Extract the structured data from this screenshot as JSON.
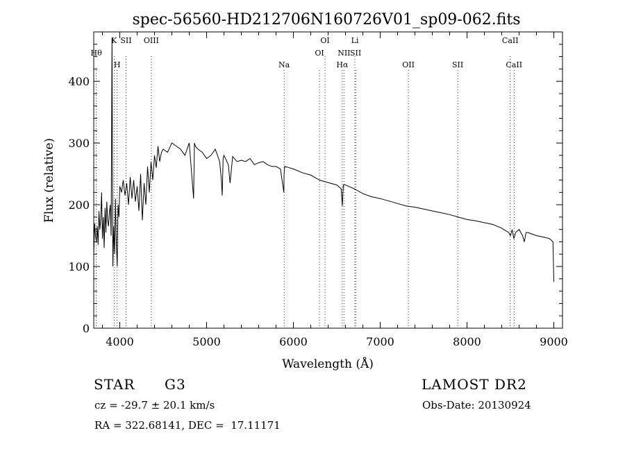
{
  "chart_data": {
    "type": "line",
    "title": "spec-56560-HD212706N160726V01_sp09-062.fits",
    "xlabel": "Wavelength (Å)",
    "ylabel": "Flux (relative)",
    "xlim": [
      3700,
      9100
    ],
    "ylim": [
      0,
      480
    ],
    "xticks": [
      4000,
      5000,
      6000,
      7000,
      8000,
      9000
    ],
    "yticks": [
      0,
      100,
      200,
      300,
      400
    ],
    "grid": false,
    "series": [
      {
        "x": [
          3700,
          3710,
          3720,
          3730,
          3740,
          3750,
          3760,
          3770,
          3780,
          3790,
          3800,
          3810,
          3820,
          3830,
          3840,
          3850,
          3860,
          3870,
          3880,
          3890,
          3900,
          3910,
          3920,
          3930,
          3940,
          3950,
          3960,
          3970,
          3980,
          3990,
          4000,
          4020,
          4040,
          4060,
          4080,
          4100,
          4120,
          4140,
          4160,
          4180,
          4200,
          4220,
          4240,
          4260,
          4280,
          4300,
          4320,
          4340,
          4360,
          4380,
          4400,
          4420,
          4440,
          4460,
          4480,
          4500,
          4550,
          4600,
          4650,
          4700,
          4750,
          4800,
          4850,
          4860,
          4870,
          4900,
          4950,
          5000,
          5050,
          5100,
          5150,
          5170,
          5180,
          5190,
          5200,
          5250,
          5270,
          5300,
          5350,
          5400,
          5450,
          5500,
          5550,
          5600,
          5650,
          5700,
          5750,
          5800,
          5850,
          5890,
          5893,
          5900,
          5950,
          6000,
          6100,
          6200,
          6300,
          6400,
          6500,
          6550,
          6563,
          6575,
          6600,
          6700,
          6800,
          6900,
          7000,
          7100,
          7200,
          7300,
          7400,
          7500,
          7600,
          7700,
          7800,
          7900,
          8000,
          8100,
          8200,
          8300,
          8400,
          8480,
          8500,
          8520,
          8540,
          8560,
          8600,
          8640,
          8660,
          8680,
          8700,
          8800,
          8900,
          8950,
          8990,
          9000
        ],
        "y": [
          120,
          170,
          150,
          140,
          165,
          135,
          190,
          160,
          175,
          220,
          145,
          180,
          130,
          195,
          155,
          205,
          175,
          165,
          188,
          200,
          150,
          470,
          100,
          165,
          120,
          210,
          140,
          100,
          200,
          180,
          230,
          220,
          240,
          215,
          235,
          200,
          245,
          210,
          240,
          205,
          230,
          190,
          250,
          175,
          235,
          200,
          262,
          220,
          270,
          240,
          280,
          260,
          295,
          270,
          285,
          290,
          285,
          300,
          295,
          290,
          280,
          300,
          210,
          300,
          295,
          290,
          285,
          275,
          280,
          290,
          270,
          240,
          215,
          275,
          280,
          265,
          235,
          278,
          270,
          272,
          270,
          275,
          265,
          268,
          270,
          265,
          262,
          262,
          258,
          220,
          250,
          262,
          260,
          258,
          252,
          248,
          240,
          236,
          232,
          226,
          198,
          232,
          232,
          226,
          218,
          213,
          210,
          206,
          202,
          198,
          196,
          193,
          190,
          187,
          184,
          180,
          176,
          174,
          171,
          168,
          162,
          155,
          150,
          160,
          145,
          155,
          160,
          150,
          140,
          155,
          155,
          150,
          147,
          145,
          140,
          75
        ]
      }
    ],
    "line_labels_top": [
      {
        "label": "Hθ",
        "wavelength": 3729
      },
      {
        "label": "K",
        "wavelength": 3934
      },
      {
        "label": "SII",
        "wavelength": 4072
      },
      {
        "label": "OIII",
        "wavelength": 4363
      },
      {
        "label": "OI",
        "wavelength": 6364
      },
      {
        "label": "Li",
        "wavelength": 6708
      },
      {
        "label": "CaII",
        "wavelength": 8498
      }
    ],
    "line_labels_bottom": [
      {
        "label": "H",
        "wavelength": 3969
      },
      {
        "label": "Na",
        "wavelength": 5893
      },
      {
        "label": "OI",
        "wavelength": 6300
      },
      {
        "label": "Hα",
        "wavelength": 6563
      },
      {
        "label": "NII",
        "wavelength": 6583
      },
      {
        "label": "SII",
        "wavelength": 6717
      },
      {
        "label": "OII",
        "wavelength": 7325
      },
      {
        "label": "SII",
        "wavelength": 7893
      },
      {
        "label": "CaII",
        "wavelength": 8542
      }
    ]
  },
  "info": {
    "object_type": "STAR",
    "subclass": "G3",
    "survey": "LAMOST DR2",
    "redshift_line": "cz = -29.7 ± 20.1 km/s",
    "obs_date": "Obs-Date: 20130924",
    "coords_line": "RA = 322.68141, DEC =  17.11171"
  }
}
